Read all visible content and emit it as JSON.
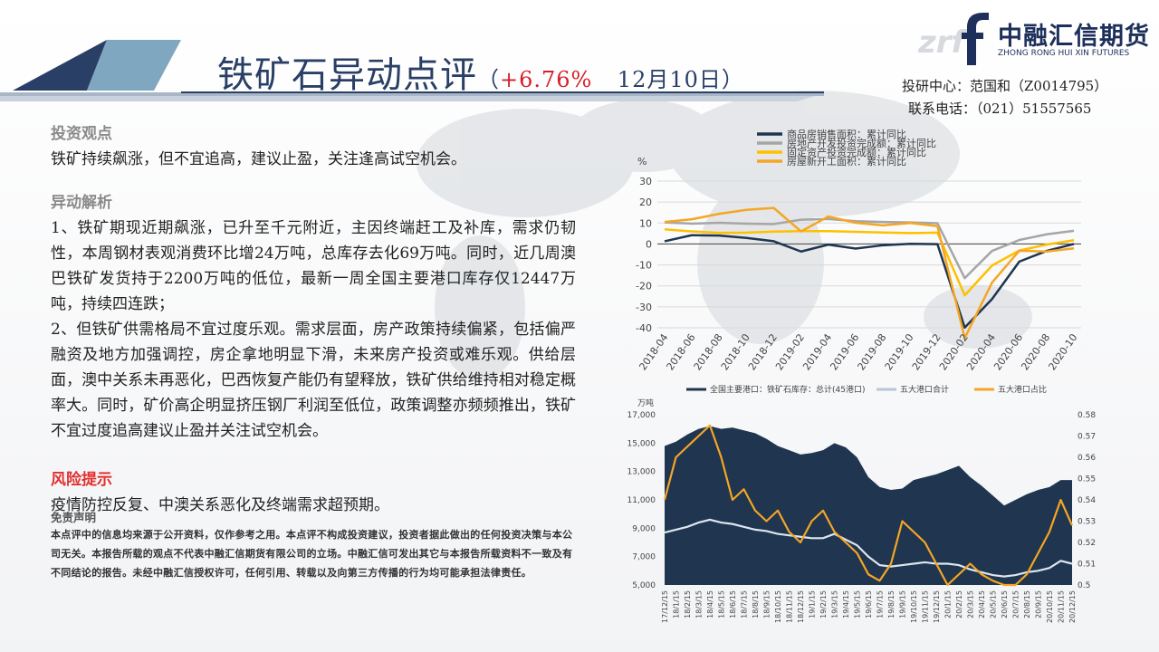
{
  "header": {
    "title_main": "铁矿石异动点评",
    "title_paren_open": "（",
    "title_pct": "+6.76%",
    "title_date": "12月10日）"
  },
  "logo": {
    "mark": "zrf",
    "name_zh": "中融汇信期货",
    "name_en": "ZHONG RONG HUI XIN FUTURES"
  },
  "contact": {
    "line1": "投研中心：范国和（Z0014795）",
    "line2": "联系电话：（021）51557565"
  },
  "content": {
    "view_heading": "投资观点",
    "view_text": "铁矿持续飙涨，但不宜追高，建议止盈，关注逢高试空机会。",
    "analysis_heading": "异动解析",
    "analysis_p1": "1、铁矿期现近期飙涨，已升至千元附近，主因终端赶工及补库，需求仍韧性，本周钢材表观消费环比增24万吨，总库存去化69万吨。同时，近几周澳巴铁矿发货持于2200万吨的低位，最新一周全国主要港口库存仅12447万吨，持续四连跌；",
    "analysis_p2": "2、但铁矿供需格局不宜过度乐观。需求层面，房产政策持续偏紧，包括偏严融资及地方加强调控，房企拿地明显下滑，未来房产投资或难乐观。供给层面，澳中关系未再恶化，巴西恢复产能仍有望释放，铁矿供给维持相对稳定概率大。同时，矿价高企明显挤压钢厂利润至低位，政策调整亦频频推出，铁矿不宜过度追高建议止盈并关注试空机会。",
    "risk_heading": "风险提示",
    "risk_text": "疫情防控反复、中澳关系恶化及终端需求超预期。",
    "disclaimer_heading": "免责声明",
    "disclaimer_text": "本点评中的信息均来源于公开资料，仅作参考之用。本点评不构成投资建议，投资者据此做出的任何投资决策与本公司无关。本报告所载的观点不代表中融汇信期货有限公司的立场。中融汇信可发出其它与本报告所载资料不一致及有不同结论的报告。未经中融汇信授权许可，任何引用、转载以及向第三方传播的行为均可能承担法律责任。"
  },
  "chart_data": [
    {
      "type": "line",
      "y_unit": "%",
      "ylim": [
        -40,
        30
      ],
      "yticks": [
        "30",
        "20",
        "10",
        "0",
        "-10",
        "-20",
        "-30",
        "-40"
      ],
      "x": [
        "2018-04",
        "2018-06",
        "2018-08",
        "2018-10",
        "2018-12",
        "2019-02",
        "2019-04",
        "2019-06",
        "2019-08",
        "2019-10",
        "2019-12",
        "2020-02",
        "2020-04",
        "2020-06",
        "2020-08",
        "2020-10"
      ],
      "legend": "top",
      "series": [
        {
          "name": "商品房销售面积：累计同比",
          "color": "#1f3550",
          "values": [
            1.3,
            4.2,
            4.0,
            2.9,
            1.3,
            -3.6,
            -0.3,
            -2.2,
            -0.6,
            0.1,
            -0.1,
            -39.9,
            -26.3,
            -8.4,
            -3.3,
            0.0
          ]
        },
        {
          "name": "房地产开发投资完成额：累计同比",
          "color": "#a6a6a6",
          "values": [
            10.3,
            9.7,
            10.1,
            9.7,
            9.5,
            11.6,
            11.9,
            10.9,
            10.5,
            10.3,
            9.9,
            -16.3,
            -3.3,
            1.9,
            4.6,
            6.3
          ]
        },
        {
          "name": "固定资产投资完成额：累计同比",
          "color": "#ffc000",
          "values": [
            7.0,
            6.0,
            5.3,
            5.4,
            5.9,
            6.1,
            6.1,
            5.8,
            5.5,
            5.2,
            5.4,
            -24.5,
            -10.3,
            -3.1,
            -0.3,
            1.8
          ]
        },
        {
          "name": "房屋新开工面积：累计同比",
          "color": "#f5a623",
          "values": [
            10.5,
            11.8,
            14.4,
            16.3,
            17.2,
            6.0,
            13.1,
            10.1,
            8.9,
            10.0,
            8.5,
            -44.9,
            -18.4,
            -3.2,
            -3.6,
            -2.1
          ]
        }
      ]
    },
    {
      "type": "area",
      "y_unit": "万吨",
      "ylim": [
        5000,
        17000
      ],
      "yticks": [
        "17,000",
        "15,000",
        "13,000",
        "11,000",
        "9,000",
        "7,000",
        "5,000"
      ],
      "y2lim": [
        0.5,
        0.58
      ],
      "y2ticks": [
        "0.58",
        "0.57",
        "0.56",
        "0.55",
        "0.54",
        "0.53",
        "0.52",
        "0.51",
        "0.5"
      ],
      "x": [
        "17/12/15",
        "18/1/15",
        "18/2/15",
        "18/3/15",
        "18/4/15",
        "18/5/15",
        "18/6/15",
        "18/7/15",
        "18/8/15",
        "18/9/15",
        "18/10/15",
        "18/11/15",
        "18/12/15",
        "19/1/15",
        "19/2/15",
        "19/3/15",
        "19/4/15",
        "19/5/15",
        "19/6/15",
        "19/7/15",
        "19/8/15",
        "19/9/15",
        "19/10/15",
        "19/11/15",
        "19/12/15",
        "20/1/15",
        "20/2/15",
        "20/3/15",
        "20/4/15",
        "20/5/15",
        "20/6/15",
        "20/7/15",
        "20/8/15",
        "20/9/15",
        "20/10/15",
        "20/11/15",
        "20/12/15"
      ],
      "legend": "top",
      "series": [
        {
          "name": "全国主要港口：铁矿石库存：总计(45港口)",
          "color": "#1f3550",
          "axis": "left",
          "values": [
            14800,
            15100,
            15600,
            16000,
            16200,
            16000,
            16100,
            15900,
            15700,
            15300,
            14800,
            14500,
            14200,
            14300,
            14500,
            15000,
            14700,
            14000,
            12600,
            11900,
            11700,
            11800,
            12400,
            12600,
            12800,
            13100,
            13400,
            12600,
            12000,
            11300,
            10600,
            11000,
            11400,
            11700,
            11900,
            12400,
            12400
          ]
        },
        {
          "name": "五大港口合计",
          "color": "#dde6ee",
          "axis": "left",
          "values": [
            8700,
            8900,
            9100,
            9400,
            9600,
            9400,
            9300,
            9100,
            8900,
            8800,
            8600,
            8500,
            8400,
            8300,
            8300,
            8600,
            8200,
            7800,
            7000,
            6400,
            6300,
            6400,
            6500,
            6600,
            6500,
            6500,
            6400,
            6100,
            5900,
            5700,
            5600,
            5700,
            5900,
            6000,
            6200,
            6700,
            6500
          ]
        },
        {
          "name": "五大港口占比",
          "color": "#f5a623",
          "axis": "right",
          "values": [
            0.54,
            0.56,
            0.565,
            0.57,
            0.575,
            0.56,
            0.54,
            0.545,
            0.535,
            0.53,
            0.535,
            0.525,
            0.52,
            0.53,
            0.535,
            0.525,
            0.52,
            0.515,
            0.505,
            0.502,
            0.51,
            0.53,
            0.525,
            0.52,
            0.51,
            0.5,
            0.505,
            0.51,
            0.505,
            0.502,
            0.5,
            0.5,
            0.505,
            0.515,
            0.525,
            0.54,
            0.528
          ]
        }
      ]
    }
  ]
}
